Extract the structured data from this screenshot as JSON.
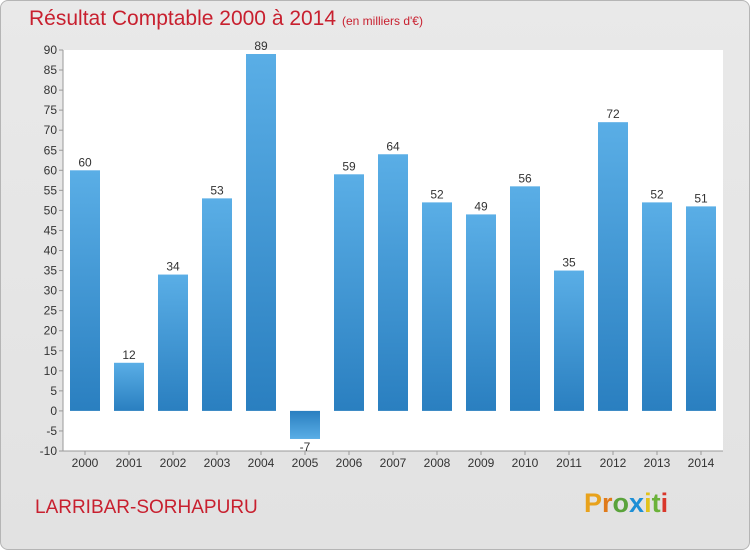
{
  "header": {
    "title": "Résultat Comptable 2000 à 2014",
    "unit": "(en milliers d'€)"
  },
  "footer": {
    "commune": "LARRIBAR-SORHAPURU",
    "brand": "Proxiti"
  },
  "colors": {
    "title": "#c8202f",
    "bar_top": "#5aaee6",
    "bar_bottom": "#2a7fc0",
    "brand_letters": [
      "#e8a21c",
      "#e07a1a",
      "#5aa33b",
      "#1d8fd6",
      "#e2c21a",
      "#6bb23a",
      "#d9372b"
    ]
  },
  "chart_data": {
    "type": "bar",
    "categories": [
      "2000",
      "2001",
      "2002",
      "2003",
      "2004",
      "2005",
      "2006",
      "2007",
      "2008",
      "2009",
      "2010",
      "2011",
      "2012",
      "2013",
      "2014"
    ],
    "values": [
      60,
      12,
      34,
      53,
      89,
      -7,
      59,
      64,
      52,
      49,
      56,
      35,
      72,
      52,
      51
    ],
    "title": "Résultat Comptable 2000 à 2014",
    "ylim": [
      -10,
      90
    ],
    "yticks": [
      -10,
      -5,
      0,
      5,
      10,
      15,
      20,
      25,
      30,
      35,
      40,
      45,
      50,
      55,
      60,
      65,
      70,
      75,
      80,
      85,
      90
    ],
    "grid": false,
    "data_labels": true
  }
}
